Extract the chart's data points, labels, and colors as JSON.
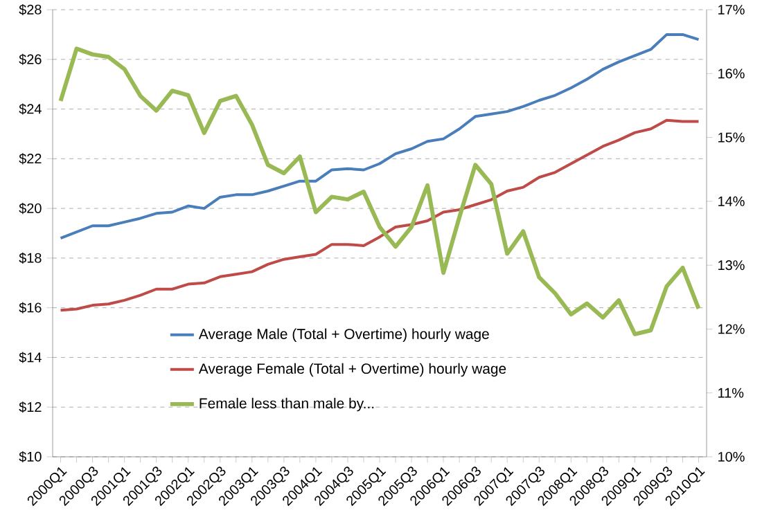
{
  "chart_data": {
    "type": "line",
    "categories": [
      "2000Q1",
      null,
      "2000Q3",
      null,
      "2001Q1",
      null,
      "2001Q3",
      null,
      "2002Q1",
      null,
      "2002Q3",
      null,
      "2003Q1",
      null,
      "2003Q3",
      null,
      "2004Q1",
      null,
      "2004Q3",
      null,
      "2005Q1",
      null,
      "2005Q3",
      null,
      "2006Q1",
      null,
      "2006Q3",
      null,
      "2007Q1",
      null,
      "2007Q3",
      null,
      "2008Q1",
      null,
      "2008Q3",
      null,
      "2009Q1",
      null,
      "2009Q3",
      null,
      "2010Q1"
    ],
    "series": [
      {
        "name": "Average Male (Total + Overtime) hourly wage",
        "color": "#4a7ebb",
        "values": [
          18.8,
          19.05,
          19.3,
          19.3,
          19.45,
          19.6,
          19.8,
          19.85,
          20.1,
          20.0,
          20.45,
          20.55,
          20.55,
          20.7,
          20.9,
          21.1,
          21.1,
          21.55,
          21.6,
          21.55,
          21.8,
          22.2,
          22.4,
          22.7,
          22.8,
          23.2,
          23.7,
          23.8,
          23.9,
          24.1,
          24.35,
          24.55,
          24.85,
          25.2,
          25.6,
          25.9,
          26.15,
          26.4,
          27.0,
          27.0,
          26.8
        ]
      },
      {
        "name": "Average Female (Total + Overtime) hourly wage",
        "color": "#be4b48",
        "values": [
          15.9,
          15.95,
          16.1,
          16.15,
          16.3,
          16.5,
          16.75,
          16.75,
          16.95,
          17.0,
          17.25,
          17.35,
          17.45,
          17.75,
          17.95,
          18.05,
          18.15,
          18.55,
          18.55,
          18.5,
          18.85,
          19.25,
          19.35,
          19.5,
          19.85,
          19.95,
          20.15,
          20.35,
          20.7,
          20.85,
          21.25,
          21.45,
          21.8,
          22.15,
          22.5,
          22.75,
          23.05,
          23.2,
          23.55,
          23.5,
          23.5
        ]
      },
      {
        "name": "Female less than male by...",
        "color": "#98b954",
        "axis": "y2",
        "values": [
          15.57,
          16.39,
          16.3,
          16.26,
          16.07,
          15.65,
          15.42,
          15.73,
          15.66,
          15.07,
          15.57,
          15.65,
          15.2,
          14.57,
          14.44,
          14.7,
          13.83,
          14.07,
          14.03,
          14.15,
          13.6,
          13.29,
          13.6,
          14.25,
          12.88,
          13.75,
          14.57,
          14.27,
          13.18,
          13.53,
          12.81,
          12.56,
          12.23,
          12.4,
          12.18,
          12.45,
          11.92,
          11.98,
          12.67,
          12.96,
          12.32
        ]
      }
    ],
    "ylim": [
      10,
      28
    ],
    "yticks": [
      {
        "value": 10,
        "label": "$10"
      },
      {
        "value": 12,
        "label": "$12"
      },
      {
        "value": 14,
        "label": "$14"
      },
      {
        "value": 16,
        "label": "$16"
      },
      {
        "value": 18,
        "label": "$18"
      },
      {
        "value": 20,
        "label": "$20"
      },
      {
        "value": 22,
        "label": "$22"
      },
      {
        "value": 24,
        "label": "$24"
      },
      {
        "value": 26,
        "label": "$26"
      },
      {
        "value": 28,
        "label": "$28"
      }
    ],
    "y2lim": [
      10,
      17
    ],
    "y2ticks": [
      {
        "value": 10,
        "label": "10%"
      },
      {
        "value": 11,
        "label": "11%"
      },
      {
        "value": 12,
        "label": "12%"
      },
      {
        "value": 13,
        "label": "13%"
      },
      {
        "value": 14,
        "label": "14%"
      },
      {
        "value": 15,
        "label": "15%"
      },
      {
        "value": 16,
        "label": "16%"
      },
      {
        "value": 17,
        "label": "17%"
      }
    ],
    "grid": "y",
    "legend": "bottom left",
    "marker": "none",
    "line_style": "solid"
  }
}
